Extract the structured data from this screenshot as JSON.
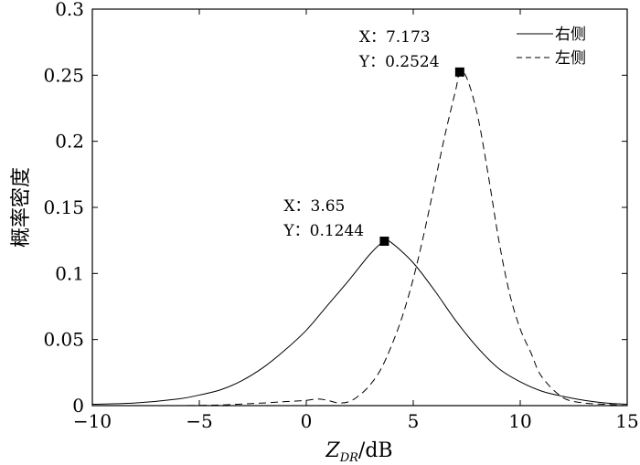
{
  "chart_data": {
    "type": "line",
    "xlabel_main": "Z",
    "xlabel_sub": "DR",
    "xlabel_unit": "/dB",
    "ylabel": "概率密度",
    "xlim": [
      -10,
      15
    ],
    "ylim": [
      0,
      0.3
    ],
    "x_ticks": [
      "−10",
      "−5",
      "0",
      "5",
      "10",
      "15"
    ],
    "y_ticks": [
      "0",
      "0.05",
      "0.1",
      "0.15",
      "0.2",
      "0.25",
      "0.3"
    ],
    "grid": false,
    "legend_position": "top-right",
    "series": [
      {
        "name": "右侧",
        "style": "solid",
        "x": [
          -10,
          -8,
          -6,
          -5,
          -4,
          -3,
          -2,
          -1,
          0,
          1,
          2,
          3,
          3.65,
          4,
          5,
          6,
          7,
          8,
          9,
          10,
          11,
          12,
          13,
          14,
          15
        ],
        "y": [
          0.001,
          0.002,
          0.005,
          0.008,
          0.012,
          0.019,
          0.029,
          0.042,
          0.057,
          0.076,
          0.095,
          0.115,
          0.1244,
          0.123,
          0.108,
          0.087,
          0.064,
          0.044,
          0.028,
          0.018,
          0.011,
          0.007,
          0.004,
          0.002,
          0.001
        ]
      },
      {
        "name": "左侧",
        "style": "dashed",
        "x": [
          -10,
          -8,
          -6,
          -4,
          -2,
          -1,
          0,
          0.5,
          1,
          1.5,
          2,
          2.5,
          3,
          3.5,
          4,
          4.5,
          5,
          5.5,
          6,
          6.5,
          7,
          7.173,
          7.5,
          8,
          8.5,
          9,
          9.5,
          10,
          10.5,
          11,
          12,
          13,
          14,
          15
        ],
        "y": [
          0,
          0,
          0,
          0.0005,
          0.002,
          0.003,
          0.004,
          0.005,
          0.004,
          0.002,
          0.003,
          0.008,
          0.016,
          0.028,
          0.046,
          0.068,
          0.096,
          0.13,
          0.168,
          0.206,
          0.24,
          0.2524,
          0.248,
          0.22,
          0.175,
          0.125,
          0.085,
          0.058,
          0.04,
          0.022,
          0.006,
          0.002,
          0.001,
          0
        ]
      }
    ],
    "annotations": [
      {
        "x": 3.65,
        "y": 0.1244,
        "label_x": "X：3.65",
        "label_y": "Y：0.1244"
      },
      {
        "x": 7.173,
        "y": 0.2524,
        "label_x": "X：7.173",
        "label_y": "Y：0.2524"
      }
    ]
  }
}
